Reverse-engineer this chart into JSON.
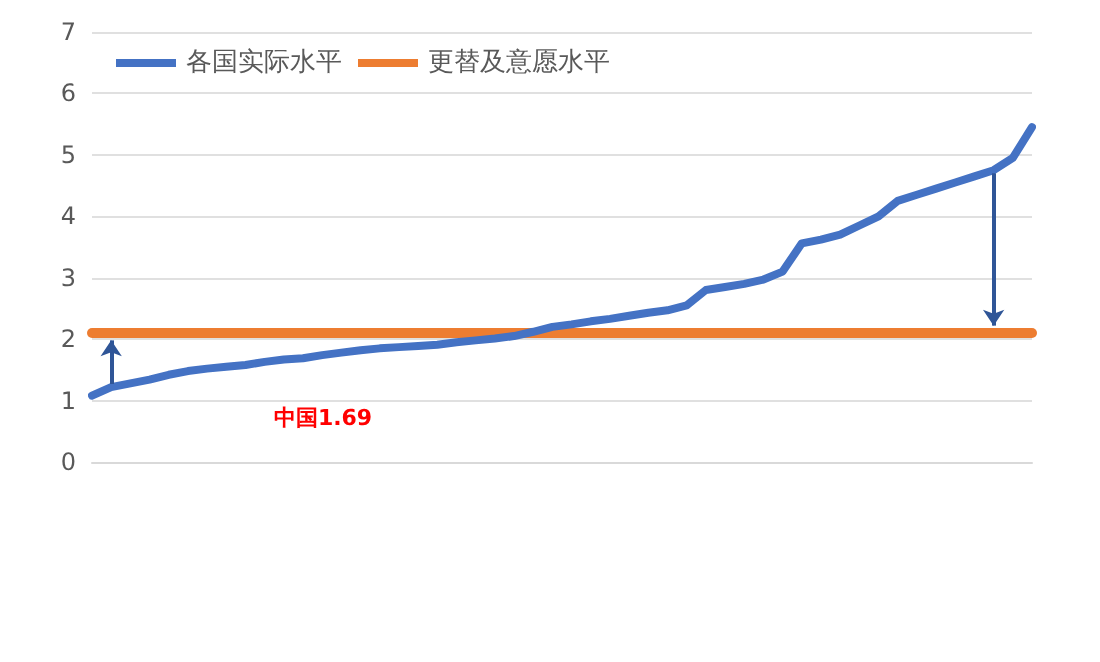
{
  "chart_data": {
    "type": "line",
    "categories": [
      null,
      null,
      null,
      null,
      null,
      null,
      null,
      null,
      null,
      null,
      null,
      null,
      null,
      null,
      null,
      null,
      null,
      null,
      null,
      null,
      null,
      null,
      null,
      null,
      null,
      null,
      null,
      null,
      null,
      null,
      null,
      null,
      null,
      null,
      null,
      null,
      null,
      null,
      null,
      null,
      null,
      null,
      null,
      null,
      null,
      null,
      null,
      null,
      null,
      null
    ],
    "series": [
      {
        "name": "各国实际水平",
        "color": "#4472c4",
        "values": [
          1.08,
          1.22,
          1.28,
          1.34,
          1.42,
          1.48,
          1.52,
          1.55,
          1.58,
          1.63,
          1.67,
          1.69,
          1.74,
          1.78,
          1.82,
          1.85,
          1.87,
          1.89,
          1.91,
          1.95,
          1.98,
          2.01,
          2.05,
          2.12,
          2.2,
          2.24,
          2.29,
          2.33,
          2.38,
          2.43,
          2.47,
          2.55,
          2.8,
          2.85,
          2.9,
          2.97,
          3.1,
          3.56,
          3.62,
          3.7,
          3.85,
          4.0,
          4.25,
          4.35,
          4.45,
          4.55,
          4.65,
          4.75,
          4.95,
          5.45
        ]
      },
      {
        "name": "更替及意愿水平",
        "color": "#ed7d31",
        "values": [
          2.1,
          2.1,
          2.1,
          2.1,
          2.1,
          2.1,
          2.1,
          2.1,
          2.1,
          2.1,
          2.1,
          2.1,
          2.1,
          2.1,
          2.1,
          2.1,
          2.1,
          2.1,
          2.1,
          2.1,
          2.1,
          2.1,
          2.1,
          2.1,
          2.1,
          2.1,
          2.1,
          2.1,
          2.1,
          2.1,
          2.1,
          2.1,
          2.1,
          2.1,
          2.1,
          2.1,
          2.1,
          2.1,
          2.1,
          2.1,
          2.1,
          2.1,
          2.1,
          2.1,
          2.1,
          2.1,
          2.1,
          2.1,
          2.1,
          2.1
        ]
      }
    ],
    "annotations": [
      {
        "text": "中国1.69",
        "y": 1.69
      }
    ],
    "ylim": [
      0,
      7
    ],
    "yticks": [
      0,
      1,
      2,
      3,
      4,
      5,
      6,
      7
    ],
    "grid": "y",
    "legend": "top left",
    "marker": "none",
    "line_style": "solid"
  }
}
